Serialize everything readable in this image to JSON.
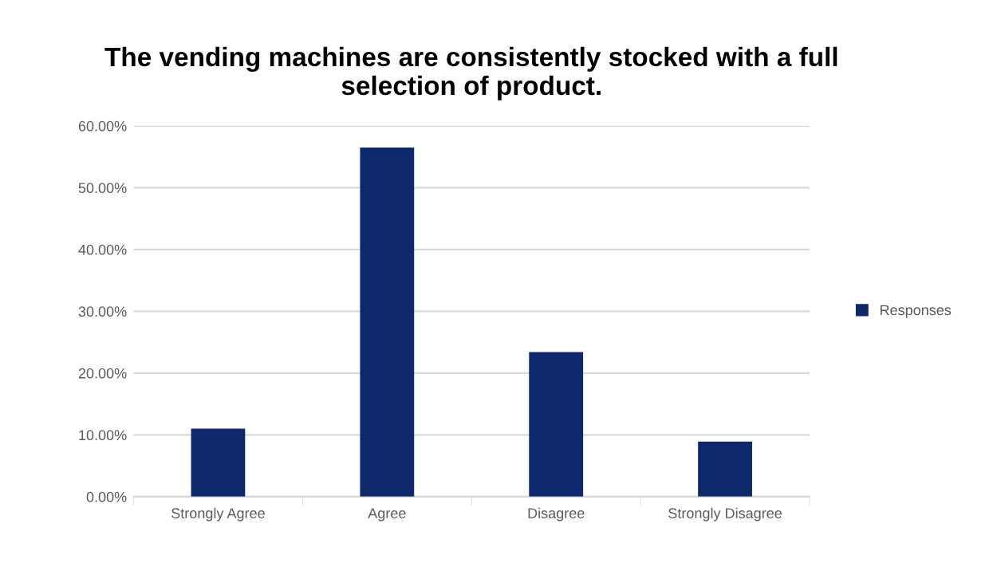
{
  "chart_data": {
    "type": "bar",
    "title": "The vending machines are consistently stocked with a full\nselection of product.",
    "categories": [
      "Strongly Agree",
      "Agree",
      "Disagree",
      "Strongly Disagree"
    ],
    "series": [
      {
        "name": "Responses",
        "color": "#0e286e",
        "values": [
          11.0,
          56.5,
          23.4,
          8.9
        ]
      }
    ],
    "ylim": [
      0,
      60
    ],
    "yticks": [
      {
        "value": 0,
        "label": "0.00%"
      },
      {
        "value": 10,
        "label": "10.00%"
      },
      {
        "value": 20,
        "label": "20.00%"
      },
      {
        "value": 30,
        "label": "30.00%"
      },
      {
        "value": 40,
        "label": "40.00%"
      },
      {
        "value": 50,
        "label": "50.00%"
      },
      {
        "value": 60,
        "label": "60.00%"
      }
    ],
    "grid": "y",
    "legend": "right"
  }
}
